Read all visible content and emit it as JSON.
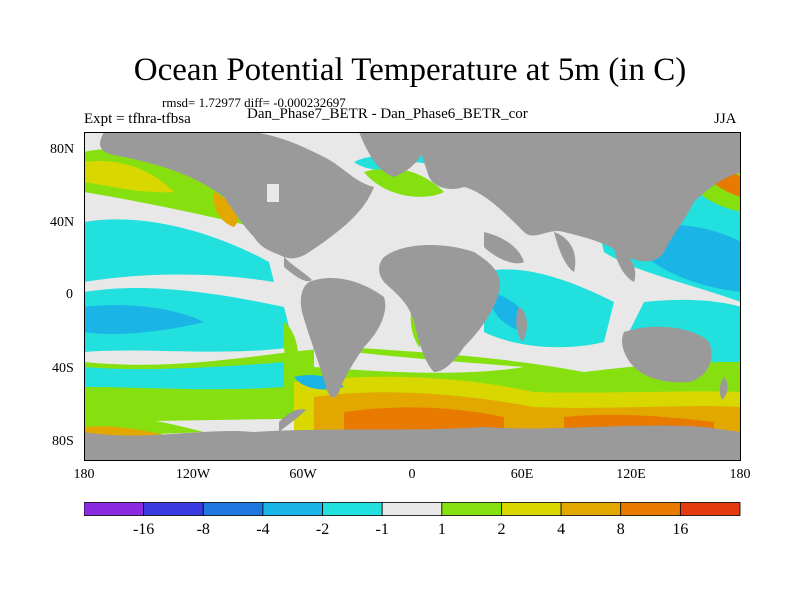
{
  "title": "Ocean Potential Temperature at 5m (in C)",
  "stats": "rmsd= 1.72977 diff= -0.000232697",
  "expt": "Expt = tfhra-tfbsa",
  "cases": "Dan_Phase7_BETR - Dan_Phase6_BETR_cor",
  "season": "JJA",
  "lat_labels": [
    "80N",
    "40N",
    "0",
    "40S",
    "80S"
  ],
  "lon_labels": [
    "180",
    "120W",
    "60W",
    "0",
    "60E",
    "120E",
    "180"
  ],
  "colorbar": {
    "colors": [
      "#8a2be2",
      "#3a3ae0",
      "#1f78e0",
      "#1ab4e6",
      "#22e0dd",
      "#e8e8e8",
      "#86e010",
      "#d8d800",
      "#e2a800",
      "#e87a00",
      "#e33a10"
    ],
    "labels": [
      "-16",
      "-8",
      "-4",
      "-2",
      "-1",
      "1",
      "2",
      "4",
      "8",
      "16"
    ]
  },
  "colors": {
    "land": "#9a9a9a",
    "neutral": "#e8e8e8",
    "cyan": "#22e0dd",
    "lightblue": "#1ab4e6",
    "green": "#86e010",
    "yellow": "#d8d800",
    "orange": "#e2a800",
    "darkorange": "#e87a00"
  }
}
